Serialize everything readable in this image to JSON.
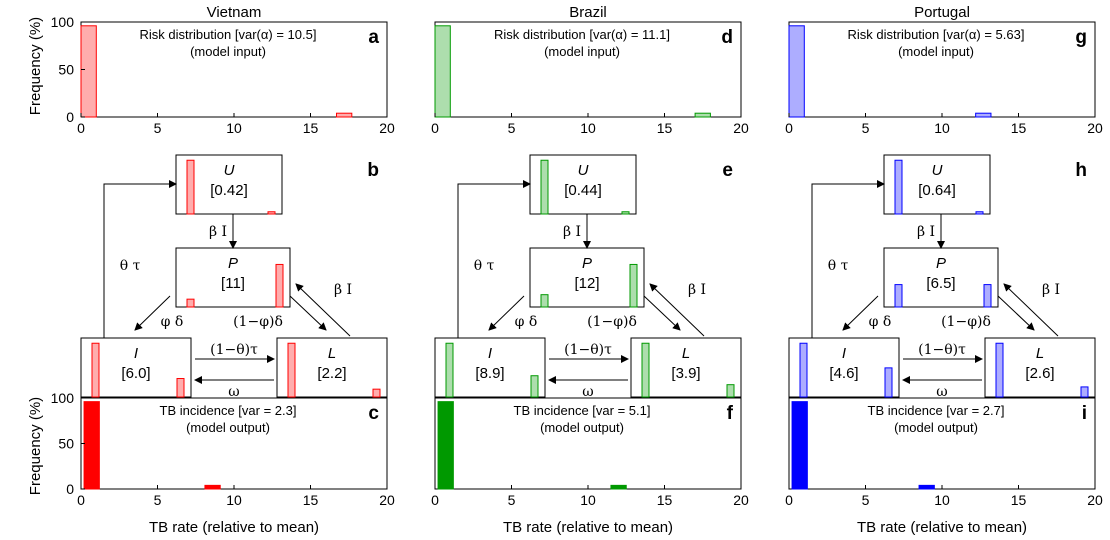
{
  "colors": {
    "Vietnam": "#ff0000",
    "Brazil": "#009900",
    "Portugal": "#0000ff"
  },
  "axes": {
    "frequency_ylabel": "Frequency (%)",
    "xlabel": "TB rate (relative to mean)",
    "x_ticks": [
      "0",
      "5",
      "10",
      "15",
      "20"
    ],
    "y_ticks": [
      "0",
      "50",
      "100"
    ]
  },
  "flow_labels": {
    "theta_tau": "θ τ",
    "beta_I": "β I",
    "phi_delta": "φ δ",
    "one_minus_phi_delta": "(1−φ)δ",
    "one_minus_theta_tau": "(1−θ)τ",
    "omega": "ω"
  },
  "countries": [
    {
      "name": "Vietnam",
      "letters": [
        "a",
        "b",
        "c"
      ],
      "risk_text": "Risk distribution [var(α) = 10.5]",
      "risk_sub": "(model input)",
      "incidence_text": "TB incidence [var = 2.3]",
      "incidence_sub": "(model output)",
      "boxes": {
        "U": {
          "label": "U",
          "value": "[0.42]"
        },
        "P": {
          "label": "P",
          "value": "[11]"
        },
        "I": {
          "label": "I",
          "value": "[6.0]"
        },
        "L": {
          "label": "L",
          "value": "[2.2]"
        }
      }
    },
    {
      "name": "Brazil",
      "letters": [
        "d",
        "e",
        "f"
      ],
      "risk_text": "Risk distribution [var(α) = 11.1]",
      "risk_sub": "(model input)",
      "incidence_text": "TB incidence [var = 5.1]",
      "incidence_sub": "(model output)",
      "boxes": {
        "U": {
          "label": "U",
          "value": "[0.44]"
        },
        "P": {
          "label": "P",
          "value": "[12]"
        },
        "I": {
          "label": "I",
          "value": "[8.9]"
        },
        "L": {
          "label": "L",
          "value": "[3.9]"
        }
      }
    },
    {
      "name": "Portugal",
      "letters": [
        "g",
        "h",
        "i"
      ],
      "risk_text": "Risk distribution [var(α) = 5.63]",
      "risk_sub": "(model input)",
      "incidence_text": "TB incidence [var = 2.7]",
      "incidence_sub": "(model output)",
      "boxes": {
        "U": {
          "label": "U",
          "value": "[0.64]"
        },
        "P": {
          "label": "P",
          "value": "[6.5]"
        },
        "I": {
          "label": "I",
          "value": "[4.6]"
        },
        "L": {
          "label": "L",
          "value": "[2.6]"
        }
      }
    }
  ],
  "chart_data": [
    {
      "type": "bar",
      "panel": "a",
      "country": "Vietnam",
      "title": "Risk distribution [var(α) = 10.5]",
      "ylabel": "Frequency (%)",
      "xlim": [
        0,
        20
      ],
      "ylim": [
        0,
        100
      ],
      "bars": [
        {
          "x": 0.5,
          "value": 96
        },
        {
          "x": 17.2,
          "value": 4
        }
      ]
    },
    {
      "type": "bar",
      "panel": "c",
      "country": "Vietnam",
      "title": "TB incidence [var = 2.3]",
      "xlabel": "TB rate (relative to mean)",
      "ylabel": "Frequency (%)",
      "xlim": [
        0,
        20
      ],
      "ylim": [
        0,
        100
      ],
      "bars": [
        {
          "x": 0.7,
          "value": 96
        },
        {
          "x": 8.6,
          "value": 4
        }
      ]
    },
    {
      "type": "bar",
      "panel": "d",
      "country": "Brazil",
      "title": "Risk distribution [var(α) = 11.1]",
      "xlim": [
        0,
        20
      ],
      "ylim": [
        0,
        100
      ],
      "bars": [
        {
          "x": 0.5,
          "value": 96
        },
        {
          "x": 17.5,
          "value": 4
        }
      ]
    },
    {
      "type": "bar",
      "panel": "f",
      "country": "Brazil",
      "title": "TB incidence [var = 5.1]",
      "xlabel": "TB rate (relative to mean)",
      "xlim": [
        0,
        20
      ],
      "ylim": [
        0,
        100
      ],
      "bars": [
        {
          "x": 0.7,
          "value": 96
        },
        {
          "x": 12.0,
          "value": 4
        }
      ]
    },
    {
      "type": "bar",
      "panel": "g",
      "country": "Portugal",
      "title": "Risk distribution [var(α) = 5.63]",
      "xlim": [
        0,
        20
      ],
      "ylim": [
        0,
        100
      ],
      "bars": [
        {
          "x": 0.5,
          "value": 96
        },
        {
          "x": 12.7,
          "value": 4
        }
      ]
    },
    {
      "type": "bar",
      "panel": "i",
      "country": "Portugal",
      "title": "TB incidence [var = 2.7]",
      "xlabel": "TB rate (relative to mean)",
      "xlim": [
        0,
        20
      ],
      "ylim": [
        0,
        100
      ],
      "bars": [
        {
          "x": 0.7,
          "value": 96
        },
        {
          "x": 9.0,
          "value": 4
        }
      ]
    },
    {
      "type": "bar",
      "panel": "b",
      "country": "Vietnam",
      "compartments": {
        "U": [
          96,
          4
        ],
        "P": [
          14,
          76
        ],
        "I": [
          96,
          33
        ],
        "L": [
          96,
          14
        ]
      }
    },
    {
      "type": "bar",
      "panel": "e",
      "country": "Brazil",
      "compartments": {
        "U": [
          96,
          4
        ],
        "P": [
          22,
          76
        ],
        "I": [
          96,
          38
        ],
        "L": [
          96,
          22
        ]
      }
    },
    {
      "type": "bar",
      "panel": "h",
      "country": "Portugal",
      "compartments": {
        "U": [
          96,
          4
        ],
        "P": [
          40,
          40
        ],
        "I": [
          96,
          52
        ],
        "L": [
          96,
          18
        ]
      }
    }
  ]
}
